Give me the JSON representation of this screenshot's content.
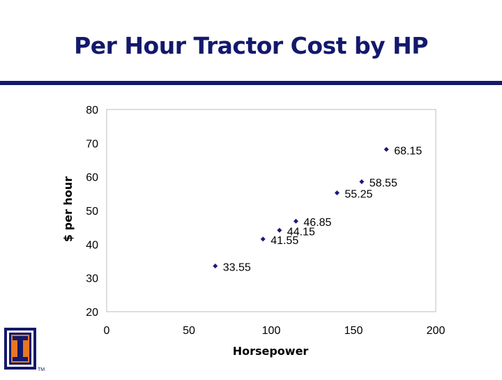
{
  "slide": {
    "title": "Per Hour Tractor Cost by HP",
    "logo_mark": "I",
    "logo_tm": "TM"
  },
  "colors": {
    "title": "#13196b",
    "marker": "#1a1a7a",
    "logo_orange": "#e87722",
    "logo_blue": "#13196b"
  },
  "chart_data": {
    "type": "scatter",
    "title": "",
    "xlabel": "Horsepower",
    "ylabel": "$ per hour",
    "xlim": [
      0,
      200
    ],
    "ylim": [
      20,
      80
    ],
    "xticks": [
      0,
      50,
      100,
      150,
      200
    ],
    "yticks": [
      20,
      30,
      40,
      50,
      60,
      70,
      80
    ],
    "grid": false,
    "points": [
      {
        "x": 66,
        "y": 33.55,
        "label": "33.55"
      },
      {
        "x": 95,
        "y": 41.55,
        "label": "41.55"
      },
      {
        "x": 105,
        "y": 44.15,
        "label": "44.15"
      },
      {
        "x": 115,
        "y": 46.85,
        "label": "46.85"
      },
      {
        "x": 140,
        "y": 55.25,
        "label": "55.25"
      },
      {
        "x": 155,
        "y": 58.55,
        "label": "58.55"
      },
      {
        "x": 170,
        "y": 68.15,
        "label": "68.15"
      }
    ]
  }
}
